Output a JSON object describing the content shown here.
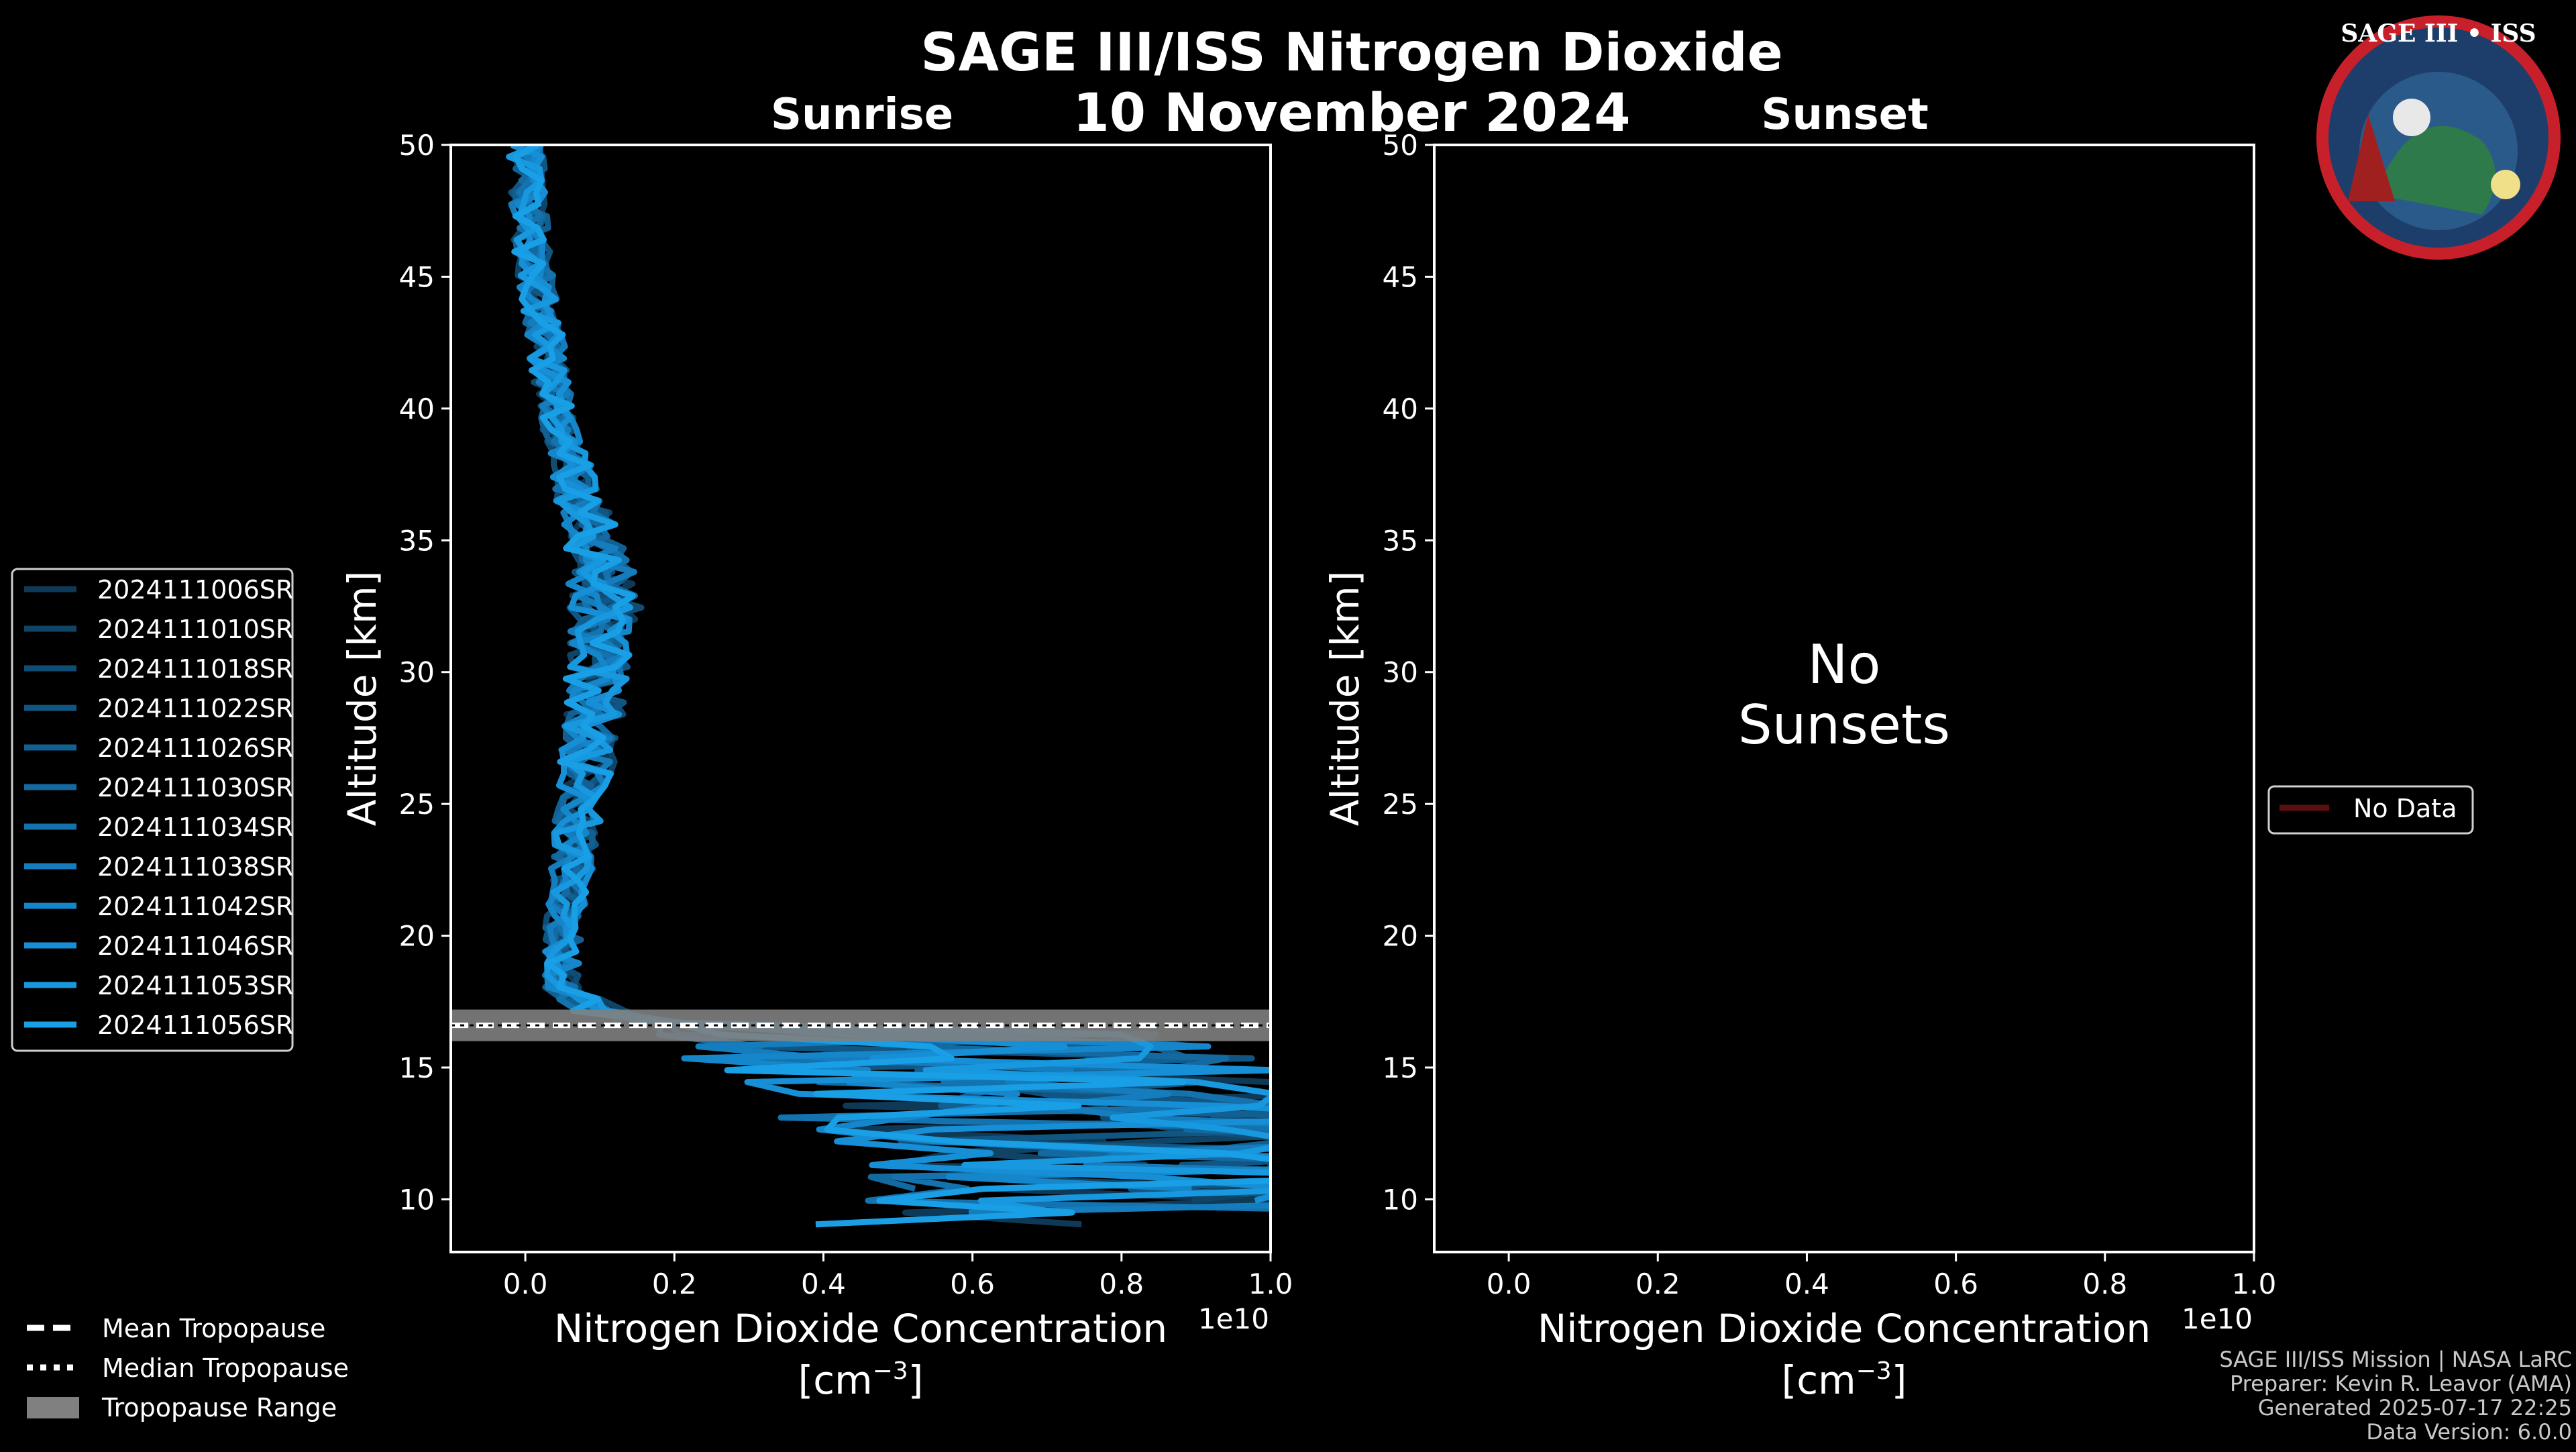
{
  "title": "SAGE III/ISS Nitrogen Dioxide",
  "date": "10 November 2024",
  "logo": {
    "text": "SAGE III • ISS"
  },
  "chart_data": [
    {
      "type": "line",
      "panel": "Sunrise",
      "title": "Sunrise",
      "xlabel": "Nitrogen Dioxide Concentration",
      "xlabel_unit": "[cm",
      "xlabel_unit_exp": "−3",
      "xlabel_unit_close": "]",
      "x_offset_label": "1e10",
      "ylabel": "Altitude [km]",
      "xlim": [
        -0.1,
        1.0
      ],
      "ylim": [
        8,
        50
      ],
      "x_ticks": [
        "0.0",
        "0.2",
        "0.4",
        "0.6",
        "0.8",
        "1.0"
      ],
      "x_tick_values": [
        0.0,
        0.2,
        0.4,
        0.6,
        0.8,
        1.0
      ],
      "y_ticks": [
        "10",
        "15",
        "20",
        "25",
        "30",
        "35",
        "40",
        "45",
        "50"
      ],
      "y_tick_values": [
        10,
        15,
        20,
        25,
        30,
        35,
        40,
        45,
        50
      ],
      "x_scale_note": "x values in units of 1e10 cm^-3",
      "series": [
        {
          "name": "2024111006SR",
          "color": "#0e3a57"
        },
        {
          "name": "2024111010SR",
          "color": "#0f4466"
        },
        {
          "name": "2024111018SR",
          "color": "#104d74"
        },
        {
          "name": "2024111022SR",
          "color": "#115683"
        },
        {
          "name": "2024111026SR",
          "color": "#126091"
        },
        {
          "name": "2024111030SR",
          "color": "#1369a0"
        },
        {
          "name": "2024111034SR",
          "color": "#1473af"
        },
        {
          "name": "2024111038SR",
          "color": "#157cbd"
        },
        {
          "name": "2024111042SR",
          "color": "#1686cb"
        },
        {
          "name": "2024111046SR",
          "color": "#178fd6"
        },
        {
          "name": "2024111053SR",
          "color": "#1898de"
        },
        {
          "name": "2024111056SR",
          "color": "#199fe6"
        }
      ],
      "profile_mean": {
        "altitude": [
          50,
          48,
          46,
          44,
          42,
          40,
          38,
          36,
          34,
          32,
          30,
          28,
          26,
          24,
          22,
          20,
          18,
          17,
          16,
          15,
          14,
          13,
          12,
          11,
          10,
          9
        ],
        "value": [
          0.0,
          0.005,
          0.01,
          0.02,
          0.03,
          0.04,
          0.06,
          0.08,
          0.1,
          0.11,
          0.1,
          0.09,
          0.08,
          0.07,
          0.06,
          0.05,
          0.05,
          0.1,
          0.3,
          0.5,
          0.6,
          0.6,
          0.7,
          0.7,
          0.7,
          0.6
        ]
      },
      "tropopause": {
        "mean": 16.6,
        "median": 16.6,
        "range": [
          16.0,
          17.2
        ]
      }
    },
    {
      "type": "line",
      "panel": "Sunset",
      "title": "Sunset",
      "xlabel": "Nitrogen Dioxide Concentration",
      "xlabel_unit": "[cm",
      "xlabel_unit_exp": "−3",
      "xlabel_unit_close": "]",
      "x_offset_label": "1e10",
      "ylabel": "Altitude [km]",
      "xlim": [
        -0.1,
        1.0
      ],
      "ylim": [
        8,
        50
      ],
      "x_ticks": [
        "0.0",
        "0.2",
        "0.4",
        "0.6",
        "0.8",
        "1.0"
      ],
      "x_tick_values": [
        0.0,
        0.2,
        0.4,
        0.6,
        0.8,
        1.0
      ],
      "y_ticks": [
        "10",
        "15",
        "20",
        "25",
        "30",
        "35",
        "40",
        "45",
        "50"
      ],
      "y_tick_values": [
        10,
        15,
        20,
        25,
        30,
        35,
        40,
        45,
        50
      ],
      "message_line1": "No",
      "message_line2": "Sunsets",
      "series": [
        {
          "name": "No Data",
          "color": "#5a1010"
        }
      ]
    }
  ],
  "tropopause_legend": {
    "mean": "Mean Tropopause",
    "median": "Median Tropopause",
    "range": "Tropopause Range",
    "range_color": "#808080"
  },
  "footer": {
    "line1": "SAGE III/ISS Mission | NASA LaRC",
    "line2": "Preparer: Kevin R. Leavor (AMA)",
    "line3": "Generated 2025-07-17 22:25",
    "line4": "Data Version: 6.0.0"
  }
}
